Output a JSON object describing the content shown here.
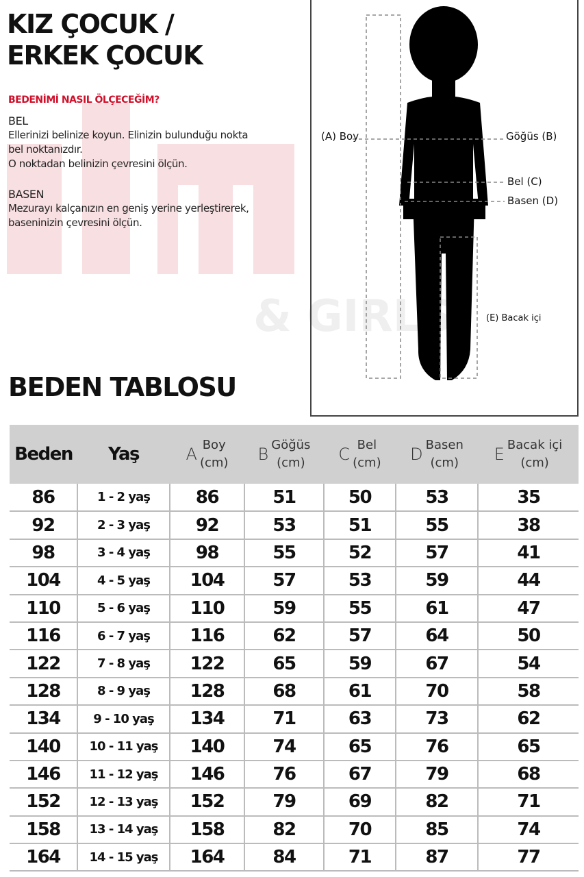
{
  "title_lines": [
    "KIZ ÇOCUK /",
    "ERKEK ÇOCUK"
  ],
  "howto_heading": "BEDENİMİ NASIL ÖLÇECEĞİM?",
  "bel": {
    "heading": "BEL",
    "lines": [
      "Ellerinizi belinize koyun. Elinizin bulunduğu nokta",
      "bel noktanızdır.",
      "O noktadan belinizin çevresini ölçün."
    ]
  },
  "basen": {
    "heading": "BASEN",
    "lines": [
      "Mezurayı kalçanızın en geniş yerine yerleştirerek,",
      "baseninizin çevresini ölçün."
    ]
  },
  "figure_labels": {
    "a": "(A) Boy",
    "b": "Göğüs (B)",
    "c": "Bel (C)",
    "d": "Basen (D)",
    "e": "(E) Bacak içi"
  },
  "watermark": "& GIRLS",
  "table_title": "BEDEN TABLOSU",
  "headers": [
    {
      "letter": "",
      "name": "Beden",
      "unit": ""
    },
    {
      "letter": "",
      "name": "Yaş",
      "unit": ""
    },
    {
      "letter": "A",
      "name": "Boy",
      "unit": "(cm)"
    },
    {
      "letter": "B",
      "name": "Göğüs",
      "unit": "(cm)"
    },
    {
      "letter": "C",
      "name": "Bel",
      "unit": "(cm)"
    },
    {
      "letter": "D",
      "name": "Basen",
      "unit": "(cm)"
    },
    {
      "letter": "E",
      "name": "Bacak içi",
      "unit": "(cm)"
    }
  ],
  "rows": [
    [
      "86",
      "1 - 2 yaş",
      "86",
      "51",
      "50",
      "53",
      "35"
    ],
    [
      "92",
      "2 - 3 yaş",
      "92",
      "53",
      "51",
      "55",
      "38"
    ],
    [
      "98",
      "3 - 4 yaş",
      "98",
      "55",
      "52",
      "57",
      "41"
    ],
    [
      "104",
      "4 - 5 yaş",
      "104",
      "57",
      "53",
      "59",
      "44"
    ],
    [
      "110",
      "5 - 6 yaş",
      "110",
      "59",
      "55",
      "61",
      "47"
    ],
    [
      "116",
      "6 - 7 yaş",
      "116",
      "62",
      "57",
      "64",
      "50"
    ],
    [
      "122",
      "7 - 8 yaş",
      "122",
      "65",
      "59",
      "67",
      "54"
    ],
    [
      "128",
      "8 - 9 yaş",
      "128",
      "68",
      "61",
      "70",
      "58"
    ],
    [
      "134",
      "9 - 10 yaş",
      "134",
      "71",
      "63",
      "73",
      "62"
    ],
    [
      "140",
      "10 - 11 yaş",
      "140",
      "74",
      "65",
      "76",
      "65"
    ],
    [
      "146",
      "11 - 12 yaş",
      "146",
      "76",
      "67",
      "79",
      "68"
    ],
    [
      "152",
      "12 - 13 yaş",
      "152",
      "79",
      "69",
      "82",
      "71"
    ],
    [
      "158",
      "13 - 14 yaş",
      "158",
      "82",
      "70",
      "85",
      "74"
    ],
    [
      "164",
      "14 - 15 yaş",
      "164",
      "84",
      "71",
      "87",
      "77"
    ]
  ],
  "colors": {
    "accent": "#d0102a",
    "header_bg": "#d0d0d0"
  }
}
